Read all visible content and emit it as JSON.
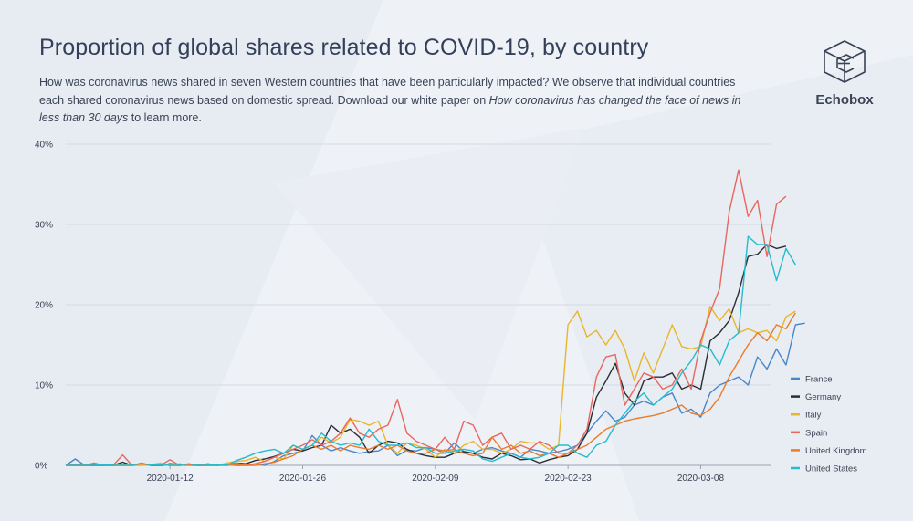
{
  "header": {
    "title": "Proportion of global shares related to COVID-19, by country",
    "subtitle_part1": "How was coronavirus news shared in seven Western countries that have been particularly impacted? We observe that individual countries each shared coronavirus news based on domestic spread. Download our white paper on ",
    "subtitle_link": "How coronavirus has changed the face of news in less than 30 days",
    "subtitle_part2": " to learn more."
  },
  "brand": {
    "name": "Echobox"
  },
  "chart_data": {
    "type": "line",
    "title": "Proportion of global shares related to COVID-19, by country",
    "xlabel": "",
    "ylabel": "",
    "x_start": "2020-01-01",
    "x_end": "2020-03-21",
    "ylim": [
      0,
      40
    ],
    "yticks": [
      0,
      10,
      20,
      30,
      40
    ],
    "ytick_labels": [
      "0%",
      "10%",
      "20%",
      "30%",
      "40%"
    ],
    "xtick_days": [
      11,
      25,
      39,
      53,
      67
    ],
    "xtick_labels": [
      "2020-01-12",
      "2020-01-26",
      "2020-02-09",
      "2020-02-23",
      "2020-03-08"
    ],
    "legend_position": "right",
    "grid": true,
    "series": [
      {
        "name": "France",
        "color": "#4a86c8",
        "values": [
          0.0,
          0.8,
          0.0,
          0.1,
          0.0,
          0.0,
          0.1,
          0.0,
          0.2,
          0.0,
          0.0,
          0.1,
          0.0,
          0.1,
          0.0,
          0.0,
          0.0,
          0.1,
          0.0,
          0.0,
          0.2,
          0.0,
          0.5,
          1.2,
          1.5,
          1.8,
          3.7,
          2.5,
          1.8,
          2.2,
          1.8,
          1.5,
          1.7,
          1.8,
          2.5,
          1.2,
          1.9,
          1.8,
          2.2,
          2.0,
          1.5,
          2.8,
          1.7,
          1.5,
          2.0,
          2.2,
          1.8,
          1.5,
          1.0,
          2.0,
          1.8,
          1.5,
          1.7,
          2.0,
          2.5,
          4.0,
          5.5,
          6.8,
          5.5,
          6.0,
          7.5,
          8.0,
          7.5,
          8.5,
          9.0,
          6.5,
          7.0,
          6.0,
          9.0,
          10.0,
          10.5,
          11.0,
          10.0,
          13.5,
          12.0,
          14.5,
          12.5,
          17.5,
          17.7
        ]
      },
      {
        "name": "Germany",
        "color": "#2a2d33",
        "values": [
          0.0,
          0.0,
          0.0,
          0.0,
          0.0,
          0.0,
          0.4,
          0.0,
          0.2,
          0.0,
          0.0,
          0.2,
          0.1,
          0.0,
          0.0,
          0.1,
          0.0,
          0.1,
          0.3,
          0.2,
          0.6,
          0.8,
          1.1,
          1.5,
          2.0,
          1.8,
          2.2,
          2.5,
          5.0,
          4.0,
          4.5,
          3.5,
          1.5,
          2.5,
          3.0,
          2.8,
          2.0,
          1.5,
          1.2,
          1.0,
          1.0,
          1.5,
          1.7,
          1.5,
          1.0,
          0.8,
          1.5,
          1.2,
          0.7,
          0.8,
          0.3,
          0.7,
          1.0,
          1.2,
          2.0,
          4.0,
          8.5,
          10.5,
          12.7,
          9.0,
          7.5,
          10.5,
          11.0,
          11.0,
          11.5,
          9.5,
          10.0,
          9.5,
          15.5,
          16.5,
          18.0,
          21.5,
          26.0,
          26.3,
          27.5,
          27.0,
          27.3
        ]
      },
      {
        "name": "Italy",
        "color": "#e8b62a",
        "values": [
          0.0,
          0.0,
          0.0,
          0.3,
          0.0,
          0.0,
          0.1,
          0.0,
          0.0,
          0.1,
          0.3,
          0.0,
          0.2,
          0.0,
          0.0,
          0.1,
          0.0,
          0.3,
          0.5,
          0.6,
          1.0,
          0.5,
          1.0,
          0.8,
          2.5,
          2.0,
          2.5,
          3.5,
          2.8,
          3.5,
          5.7,
          5.5,
          5.0,
          5.5,
          2.5,
          1.5,
          2.8,
          2.5,
          2.0,
          1.0,
          2.0,
          1.5,
          2.5,
          3.0,
          2.0,
          2.0,
          1.5,
          2.0,
          3.0,
          2.8,
          2.8,
          2.0,
          2.5,
          17.5,
          19.2,
          16.0,
          16.8,
          15.0,
          16.8,
          14.5,
          10.5,
          14.0,
          11.5,
          14.5,
          17.5,
          14.8,
          14.5,
          14.8,
          19.8,
          18.0,
          19.5,
          16.5,
          17.0,
          16.5,
          16.8,
          15.5,
          18.5,
          19.2
        ]
      },
      {
        "name": "Spain",
        "color": "#e8675e",
        "values": [
          0.0,
          0.1,
          0.0,
          0.0,
          0.0,
          0.0,
          1.3,
          0.0,
          0.2,
          0.0,
          0.0,
          0.7,
          0.0,
          0.1,
          0.0,
          0.2,
          0.0,
          0.1,
          0.3,
          0.0,
          0.2,
          0.5,
          1.0,
          1.5,
          2.0,
          2.5,
          3.2,
          2.5,
          3.0,
          4.0,
          5.9,
          4.0,
          3.5,
          4.5,
          5.0,
          8.2,
          4.0,
          3.0,
          2.5,
          2.0,
          3.5,
          2.0,
          5.5,
          5.0,
          2.5,
          3.5,
          4.0,
          2.0,
          2.5,
          2.0,
          3.0,
          2.5,
          1.5,
          1.5,
          2.5,
          4.5,
          11.0,
          13.5,
          13.8,
          7.5,
          9.5,
          11.5,
          11.0,
          9.5,
          10.0,
          12.0,
          9.5,
          15.5,
          19.0,
          22.0,
          31.5,
          36.8,
          31.0,
          33.0,
          26.0,
          32.5,
          33.5
        ]
      },
      {
        "name": "United Kingdom",
        "color": "#ec7a2a",
        "values": [
          0.0,
          0.0,
          0.0,
          0.3,
          0.0,
          0.0,
          0.0,
          0.0,
          0.2,
          0.0,
          0.1,
          0.0,
          0.0,
          0.1,
          0.0,
          0.0,
          0.0,
          0.0,
          0.1,
          0.0,
          0.0,
          0.2,
          0.4,
          0.8,
          1.2,
          2.0,
          2.5,
          2.0,
          2.5,
          1.8,
          2.5,
          2.2,
          2.0,
          2.5,
          2.0,
          2.5,
          1.8,
          1.5,
          1.5,
          2.0,
          1.8,
          2.0,
          1.5,
          1.2,
          1.5,
          3.5,
          2.0,
          2.5,
          1.5,
          1.8,
          1.2,
          1.5,
          1.0,
          1.5,
          2.0,
          2.5,
          3.5,
          4.5,
          5.0,
          5.5,
          5.8,
          6.0,
          6.2,
          6.5,
          7.0,
          7.5,
          6.5,
          6.2,
          7.0,
          8.5,
          11.0,
          13.0,
          15.0,
          16.5,
          15.5,
          17.5,
          17.0,
          19.0
        ]
      },
      {
        "name": "United States",
        "color": "#25bccd",
        "values": [
          0.0,
          0.0,
          0.0,
          0.0,
          0.1,
          0.0,
          0.0,
          0.0,
          0.3,
          0.0,
          0.1,
          0.0,
          0.0,
          0.2,
          0.0,
          0.0,
          0.1,
          0.0,
          0.6,
          1.0,
          1.5,
          1.8,
          2.0,
          1.5,
          2.5,
          2.0,
          2.5,
          4.0,
          3.0,
          2.5,
          2.8,
          2.5,
          4.5,
          3.0,
          2.5,
          2.5,
          2.8,
          2.2,
          2.2,
          1.5,
          1.5,
          1.8,
          2.0,
          1.8,
          0.8,
          0.5,
          1.0,
          1.5,
          1.0,
          0.8,
          1.0,
          1.5,
          2.5,
          2.5,
          1.5,
          1.0,
          2.5,
          3.0,
          5.0,
          6.5,
          8.0,
          9.0,
          7.5,
          8.5,
          9.5,
          11.5,
          13.0,
          15.0,
          14.5,
          12.5,
          15.5,
          16.5,
          28.5,
          27.5,
          27.5,
          23.0,
          27.0,
          25.0
        ]
      }
    ]
  }
}
